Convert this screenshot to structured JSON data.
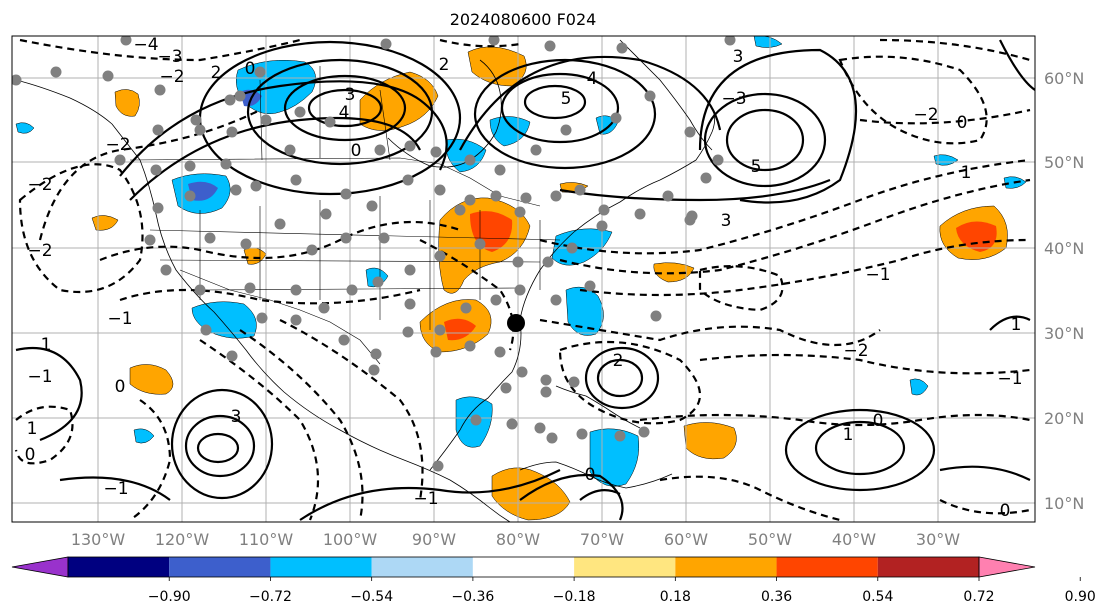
{
  "title": "2024080600 F024",
  "lon_labels": [
    "130°W",
    "120°W",
    "110°W",
    "100°W",
    "90°W",
    "80°W",
    "70°W",
    "60°W",
    "50°W",
    "40°W",
    "30°W"
  ],
  "lat_labels": [
    "60°N",
    "50°N",
    "40°N",
    "30°N",
    "20°N",
    "10°N"
  ],
  "colorbar": {
    "colors": [
      "#9932cc",
      "#000080",
      "#3d5fcc",
      "#00bfff",
      "#add8f5",
      "#ffffff",
      "#ffe680",
      "#ffa500",
      "#ff4500",
      "#b22222",
      "#ff80b0"
    ],
    "tick_labels": [
      "−0.90",
      "−0.72",
      "−0.54",
      "−0.36",
      "−0.18",
      "0.18",
      "0.36",
      "0.54",
      "0.72",
      "0.90"
    ]
  },
  "contour_labels": [
    "−4",
    "−3",
    "−2",
    "−2",
    "−2",
    "−2",
    "−1",
    "−1",
    "−1",
    "−1",
    "0",
    "0",
    "0",
    "0",
    "0",
    "1",
    "1",
    "1",
    "2",
    "2",
    "3",
    "3",
    "3",
    "3",
    "4",
    "4",
    "5",
    "5",
    "−3",
    "−2",
    "0",
    "2",
    "0",
    "1",
    "−1",
    "−2",
    "−1",
    "0",
    "1"
  ],
  "marker_colors": {
    "station": "#808080",
    "highlight": "#000000"
  }
}
